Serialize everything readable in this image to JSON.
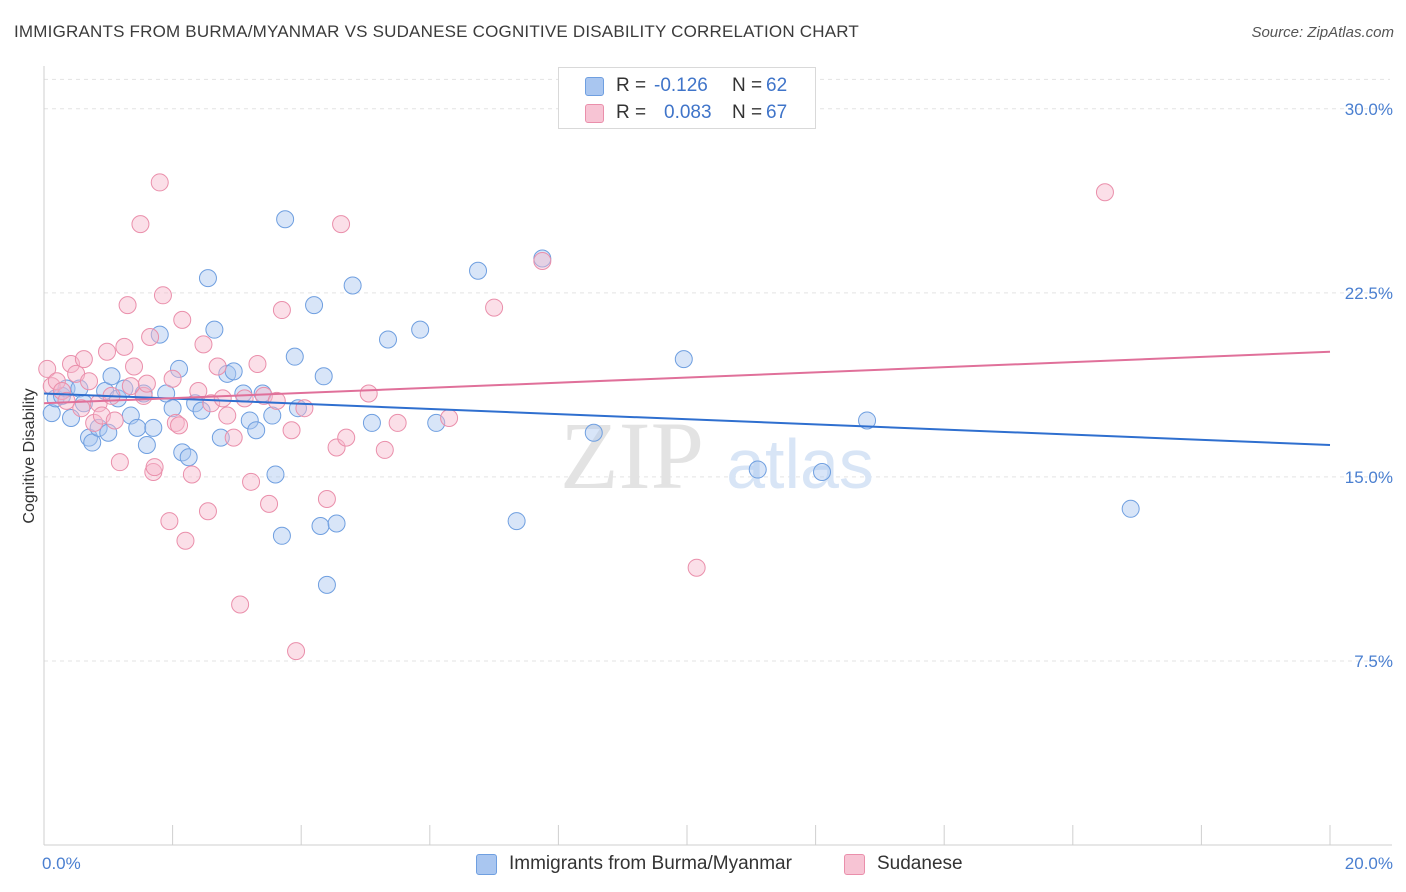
{
  "header": {
    "title": "IMMIGRANTS FROM BURMA/MYANMAR VS SUDANESE COGNITIVE DISABILITY CORRELATION CHART",
    "source": "Source: ZipAtlas.com"
  },
  "watermark": {
    "zip": "ZIP",
    "atlas": "atlas"
  },
  "colors": {
    "blue_fill": "#a9c6f0",
    "blue_stroke": "#6f9fe0",
    "blue_line": "#2f6fcf",
    "pink_fill": "#f7b9cc",
    "pink_stroke": "#ea8fab",
    "pink_line": "#e0709a",
    "axis_text": "#4a7fd0"
  },
  "legend_top": [
    {
      "r_label": "R =",
      "r_value": "-0.126",
      "n_label": "N =",
      "n_value": "62"
    },
    {
      "r_label": "R =",
      "r_value": "0.083",
      "n_label": "N =",
      "n_value": "67"
    }
  ],
  "chart_data": {
    "type": "scatter",
    "title": "IMMIGRANTS FROM BURMA/MYANMAR VS SUDANESE COGNITIVE DISABILITY CORRELATION CHART",
    "xlabel": "",
    "ylabel": "Cognitive Disability",
    "xlim": [
      0,
      20
    ],
    "ylim": [
      0,
      31.5
    ],
    "x_tick_labels": [
      "0.0%",
      "20.0%"
    ],
    "y_ticks": [
      7.5,
      15.0,
      22.5,
      30.0
    ],
    "y_tick_labels": [
      "7.5%",
      "15.0%",
      "22.5%",
      "30.0%"
    ],
    "grid": true,
    "legend_position": "bottom",
    "series": [
      {
        "name": "Immigrants from Burma/Myanmar",
        "r": -0.126,
        "n": 62,
        "trend": {
          "x": [
            0,
            20
          ],
          "y": [
            18.4,
            16.3
          ]
        },
        "points": [
          [
            0.12,
            17.6
          ],
          [
            0.18,
            18.2
          ],
          [
            0.28,
            18.3
          ],
          [
            0.35,
            18.6
          ],
          [
            0.42,
            17.4
          ],
          [
            0.55,
            18.6
          ],
          [
            0.62,
            18.0
          ],
          [
            0.7,
            16.6
          ],
          [
            0.75,
            16.4
          ],
          [
            0.85,
            17.0
          ],
          [
            0.95,
            18.5
          ],
          [
            1.05,
            19.1
          ],
          [
            1.15,
            18.2
          ],
          [
            1.25,
            18.6
          ],
          [
            1.35,
            17.5
          ],
          [
            1.45,
            17.0
          ],
          [
            1.55,
            18.4
          ],
          [
            1.6,
            16.3
          ],
          [
            1.7,
            17.0
          ],
          [
            1.8,
            20.8
          ],
          [
            1.9,
            18.4
          ],
          [
            2.0,
            17.8
          ],
          [
            2.1,
            19.4
          ],
          [
            2.15,
            16.0
          ],
          [
            2.25,
            15.8
          ],
          [
            2.35,
            18.0
          ],
          [
            2.45,
            17.7
          ],
          [
            2.55,
            23.1
          ],
          [
            2.65,
            21.0
          ],
          [
            2.75,
            16.6
          ],
          [
            2.85,
            19.2
          ],
          [
            2.95,
            19.3
          ],
          [
            3.1,
            18.4
          ],
          [
            3.2,
            17.3
          ],
          [
            3.3,
            16.9
          ],
          [
            3.4,
            18.4
          ],
          [
            3.55,
            17.5
          ],
          [
            3.6,
            15.1
          ],
          [
            3.7,
            12.6
          ],
          [
            3.75,
            25.5
          ],
          [
            3.9,
            19.9
          ],
          [
            3.95,
            17.8
          ],
          [
            4.2,
            22.0
          ],
          [
            4.3,
            13.0
          ],
          [
            4.35,
            19.1
          ],
          [
            4.4,
            10.6
          ],
          [
            4.55,
            13.1
          ],
          [
            4.8,
            22.8
          ],
          [
            5.1,
            17.2
          ],
          [
            5.35,
            20.6
          ],
          [
            5.85,
            21.0
          ],
          [
            6.1,
            17.2
          ],
          [
            6.75,
            23.4
          ],
          [
            7.35,
            13.2
          ],
          [
            7.75,
            23.9
          ],
          [
            8.55,
            16.8
          ],
          [
            9.95,
            19.8
          ],
          [
            11.1,
            15.3
          ],
          [
            12.1,
            15.2
          ],
          [
            12.8,
            17.3
          ],
          [
            16.9,
            13.7
          ],
          [
            1.0,
            16.8
          ]
        ]
      },
      {
        "name": "Sudanese",
        "r": 0.083,
        "n": 67,
        "trend": {
          "x": [
            0,
            20
          ],
          "y": [
            18.0,
            20.1
          ]
        },
        "points": [
          [
            0.05,
            19.4
          ],
          [
            0.12,
            18.7
          ],
          [
            0.2,
            18.9
          ],
          [
            0.28,
            18.5
          ],
          [
            0.35,
            18.1
          ],
          [
            0.42,
            19.6
          ],
          [
            0.5,
            19.2
          ],
          [
            0.58,
            17.8
          ],
          [
            0.62,
            19.8
          ],
          [
            0.7,
            18.9
          ],
          [
            0.78,
            17.2
          ],
          [
            0.85,
            18.0
          ],
          [
            0.9,
            17.5
          ],
          [
            0.98,
            20.1
          ],
          [
            1.05,
            18.3
          ],
          [
            1.1,
            17.3
          ],
          [
            1.18,
            15.6
          ],
          [
            1.25,
            20.3
          ],
          [
            1.3,
            22.0
          ],
          [
            1.35,
            18.7
          ],
          [
            1.4,
            19.5
          ],
          [
            1.5,
            25.3
          ],
          [
            1.55,
            18.3
          ],
          [
            1.6,
            18.8
          ],
          [
            1.65,
            20.7
          ],
          [
            1.7,
            15.2
          ],
          [
            1.72,
            15.4
          ],
          [
            1.8,
            27.0
          ],
          [
            1.85,
            22.4
          ],
          [
            1.95,
            13.2
          ],
          [
            2.0,
            19.0
          ],
          [
            2.05,
            17.2
          ],
          [
            2.1,
            17.1
          ],
          [
            2.15,
            21.4
          ],
          [
            2.2,
            12.4
          ],
          [
            2.3,
            15.1
          ],
          [
            2.4,
            18.5
          ],
          [
            2.48,
            20.4
          ],
          [
            2.55,
            13.6
          ],
          [
            2.6,
            18.0
          ],
          [
            2.7,
            19.5
          ],
          [
            2.78,
            18.2
          ],
          [
            2.85,
            17.5
          ],
          [
            2.95,
            16.6
          ],
          [
            3.05,
            9.8
          ],
          [
            3.12,
            18.2
          ],
          [
            3.22,
            14.8
          ],
          [
            3.32,
            19.6
          ],
          [
            3.42,
            18.3
          ],
          [
            3.5,
            13.9
          ],
          [
            3.62,
            18.1
          ],
          [
            3.7,
            21.8
          ],
          [
            3.85,
            16.9
          ],
          [
            3.92,
            7.9
          ],
          [
            4.05,
            17.8
          ],
          [
            4.4,
            14.1
          ],
          [
            4.55,
            16.2
          ],
          [
            4.62,
            25.3
          ],
          [
            4.7,
            16.6
          ],
          [
            5.05,
            18.4
          ],
          [
            5.3,
            16.1
          ],
          [
            5.5,
            17.2
          ],
          [
            6.3,
            17.4
          ],
          [
            7.0,
            21.9
          ],
          [
            7.75,
            23.8
          ],
          [
            10.15,
            11.3
          ],
          [
            16.5,
            26.6
          ]
        ]
      }
    ]
  }
}
